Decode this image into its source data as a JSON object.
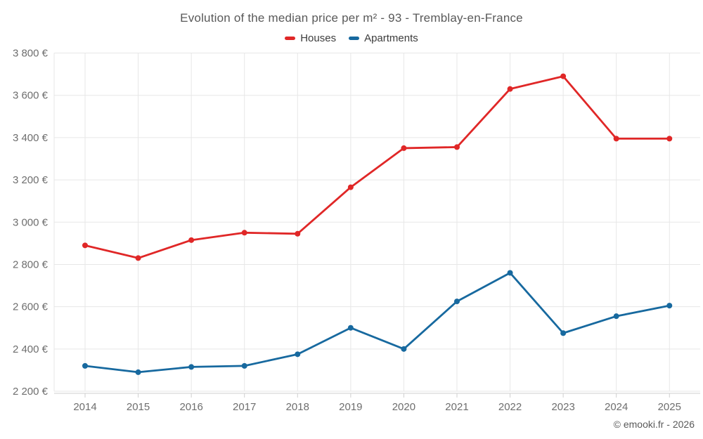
{
  "chart_data": {
    "type": "line",
    "title": "Evolution of the median price per m² - 93 - Tremblay-en-France",
    "x": [
      2014,
      2015,
      2016,
      2017,
      2018,
      2019,
      2020,
      2021,
      2022,
      2023,
      2024,
      2025
    ],
    "series": [
      {
        "name": "Houses",
        "color": "#e02727",
        "values": [
          2890,
          2830,
          2915,
          2950,
          2945,
          3165,
          3350,
          3355,
          3630,
          3690,
          3395,
          3395
        ]
      },
      {
        "name": "Apartments",
        "color": "#17699f",
        "values": [
          2320,
          2290,
          2315,
          2320,
          2375,
          2500,
          2400,
          2625,
          2760,
          2475,
          2555,
          2605
        ]
      }
    ],
    "ylabel": "",
    "xlabel": "",
    "ylim": [
      2200,
      3800
    ],
    "ytick_step": 200,
    "ytick_suffix": " €",
    "grid": true,
    "legend_position": "top",
    "grid_color": "#e7e7e7",
    "axis_line_color": "#cfcfcf",
    "axis_label_color": "#6e6e6e"
  },
  "footer": {
    "credit": "© emooki.fr - 2026"
  }
}
